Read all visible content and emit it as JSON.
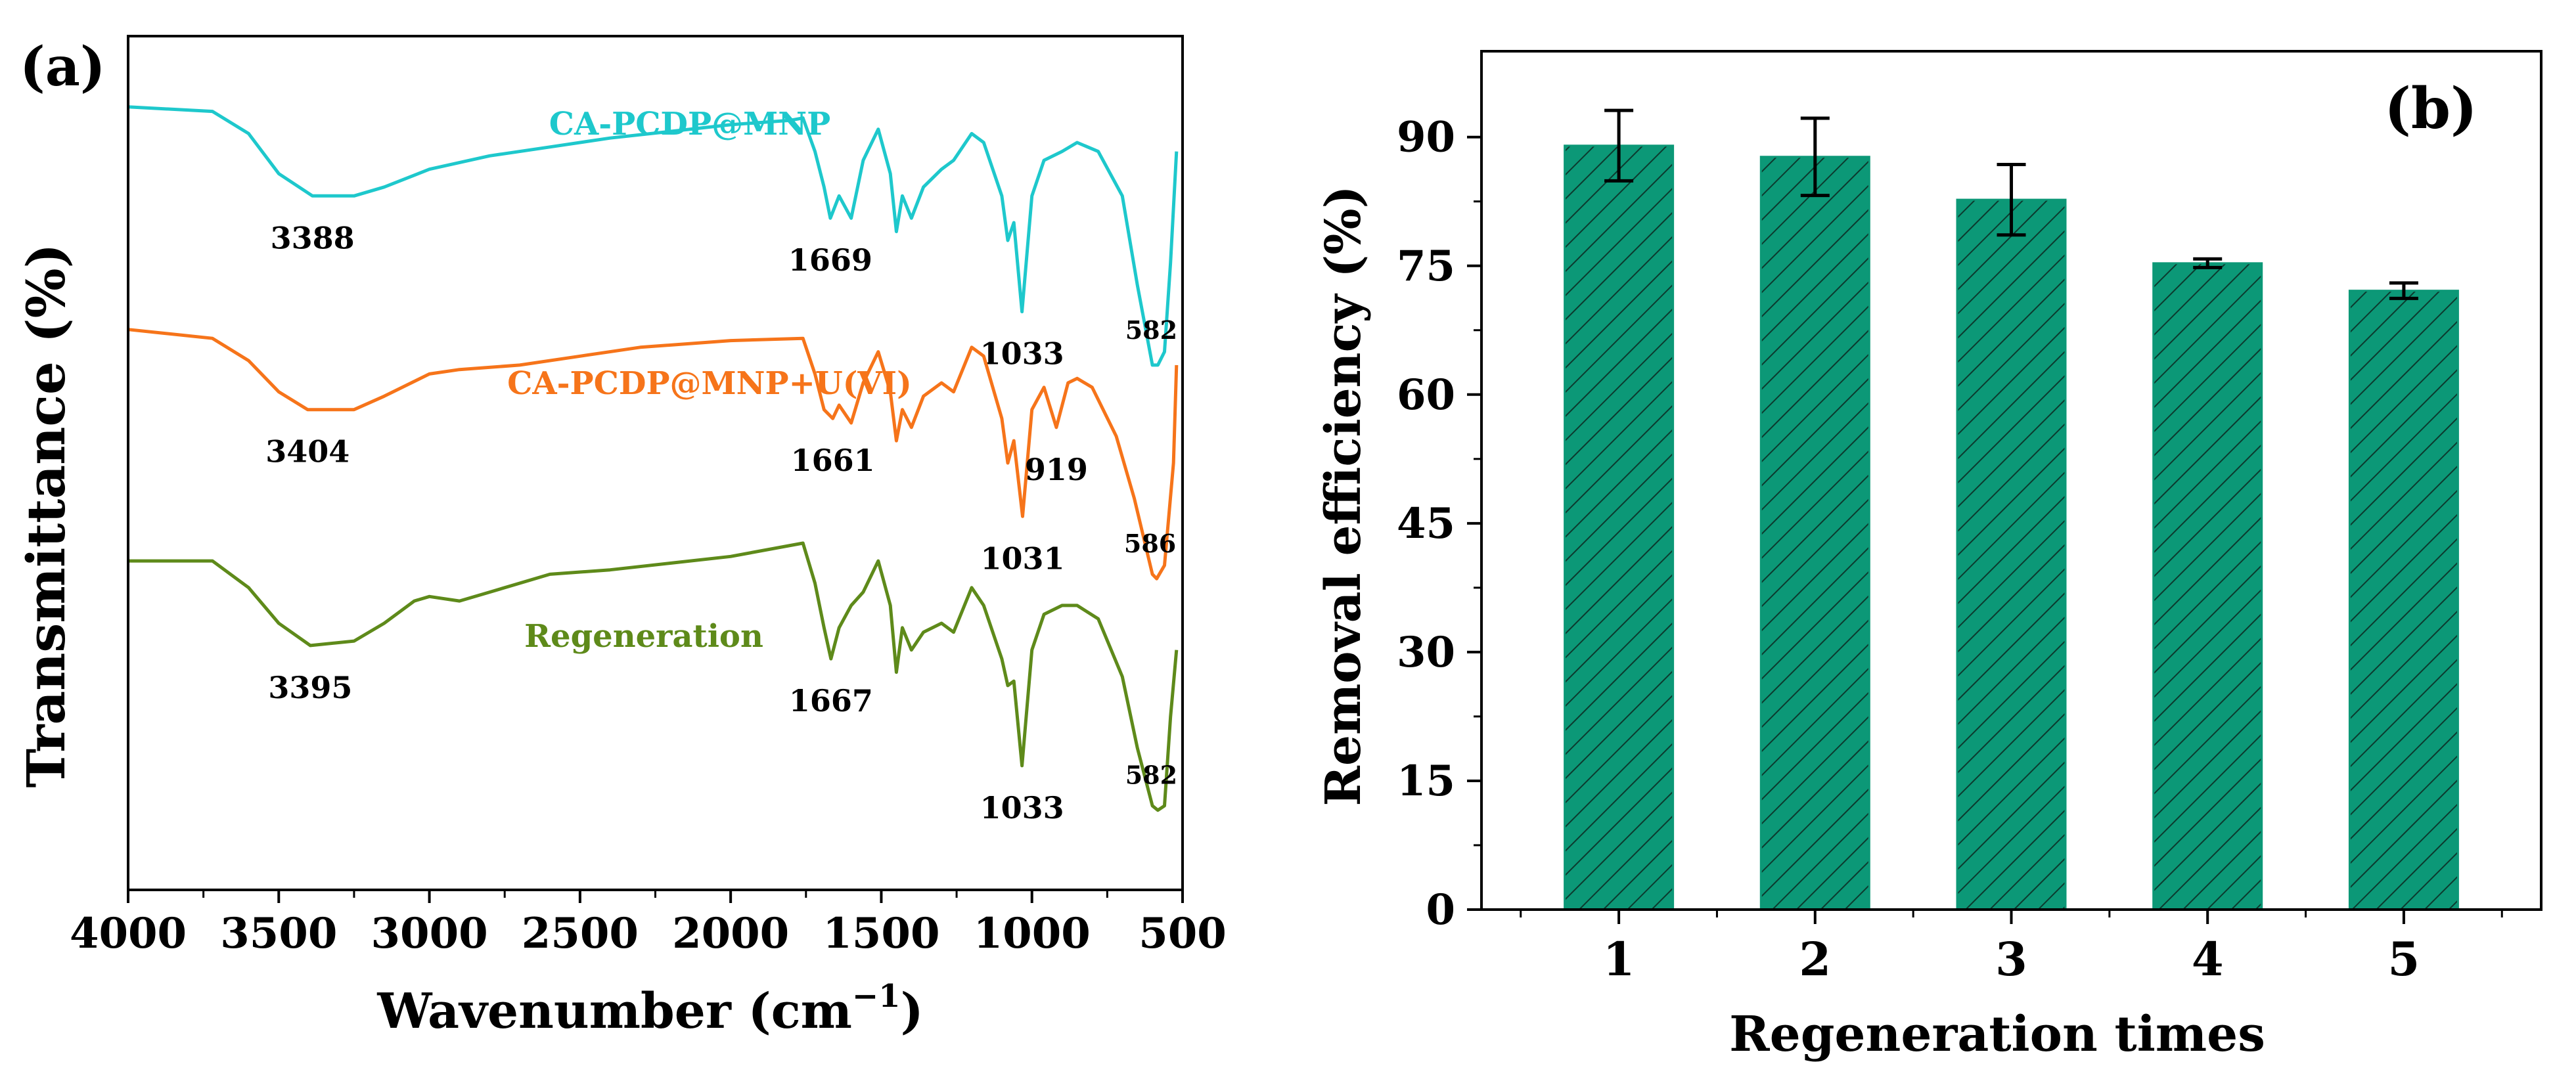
{
  "chart_data": [
    {
      "type": "line",
      "panel_label": "(a)",
      "xlabel": "Wavenumber (cm",
      "xlabel_sup": "−1",
      "xlabel_close": ")",
      "ylabel": "Transmittance (%)",
      "xlim": [
        4000,
        500
      ],
      "x_ticks": [
        "4000",
        "3500",
        "3000",
        "2500",
        "2000",
        "1500",
        "1000",
        "500"
      ],
      "x_tick_values": [
        4000,
        3500,
        3000,
        2500,
        2000,
        1500,
        1000,
        500
      ],
      "series": [
        {
          "name": "CA-PCDP@MNP",
          "color": "#1ec8cc",
          "offset": 0.9,
          "points": [
            [
              4000,
              0
            ],
            [
              3720,
              -0.01
            ],
            [
              3600,
              -0.06
            ],
            [
              3500,
              -0.15
            ],
            [
              3388,
              -0.2
            ],
            [
              3250,
              -0.2
            ],
            [
              3150,
              -0.18
            ],
            [
              3000,
              -0.14
            ],
            [
              2800,
              -0.11
            ],
            [
              2600,
              -0.09
            ],
            [
              2400,
              -0.07
            ],
            [
              2200,
              -0.055
            ],
            [
              2000,
              -0.04
            ],
            [
              1800,
              -0.03
            ],
            [
              1760,
              -0.025
            ],
            [
              1720,
              -0.1
            ],
            [
              1690,
              -0.18
            ],
            [
              1669,
              -0.25
            ],
            [
              1640,
              -0.2
            ],
            [
              1600,
              -0.25
            ],
            [
              1560,
              -0.12
            ],
            [
              1510,
              -0.05
            ],
            [
              1470,
              -0.15
            ],
            [
              1450,
              -0.28
            ],
            [
              1430,
              -0.2
            ],
            [
              1400,
              -0.25
            ],
            [
              1360,
              -0.18
            ],
            [
              1300,
              -0.14
            ],
            [
              1260,
              -0.12
            ],
            [
              1200,
              -0.06
            ],
            [
              1160,
              -0.08
            ],
            [
              1100,
              -0.2
            ],
            [
              1080,
              -0.3
            ],
            [
              1060,
              -0.26
            ],
            [
              1033,
              -0.46
            ],
            [
              1000,
              -0.2
            ],
            [
              960,
              -0.12
            ],
            [
              900,
              -0.1
            ],
            [
              850,
              -0.08
            ],
            [
              780,
              -0.1
            ],
            [
              700,
              -0.2
            ],
            [
              650,
              -0.4
            ],
            [
              600,
              -0.58
            ],
            [
              582,
              -0.58
            ],
            [
              560,
              -0.55
            ],
            [
              540,
              -0.35
            ],
            [
              520,
              -0.1
            ]
          ],
          "peaks": [
            {
              "label": "3388",
              "x": 3388,
              "y": -0.2
            },
            {
              "label": "1669",
              "x": 1669,
              "y": -0.25
            },
            {
              "label": "1033",
              "x": 1033,
              "y": -0.46
            },
            {
              "label": "582",
              "x": 582,
              "y": -0.58
            }
          ]
        },
        {
          "name": "CA-PCDP@MNP+U(VI)",
          "color": "#f6741a",
          "offset": 0.4,
          "points": [
            [
              4000,
              0
            ],
            [
              3720,
              -0.02
            ],
            [
              3600,
              -0.07
            ],
            [
              3500,
              -0.14
            ],
            [
              3404,
              -0.18
            ],
            [
              3250,
              -0.18
            ],
            [
              3150,
              -0.15
            ],
            [
              3000,
              -0.1
            ],
            [
              2900,
              -0.09
            ],
            [
              2700,
              -0.08
            ],
            [
              2500,
              -0.06
            ],
            [
              2300,
              -0.04
            ],
            [
              2000,
              -0.025
            ],
            [
              1760,
              -0.02
            ],
            [
              1720,
              -0.1
            ],
            [
              1690,
              -0.18
            ],
            [
              1661,
              -0.2
            ],
            [
              1640,
              -0.17
            ],
            [
              1600,
              -0.21
            ],
            [
              1560,
              -0.12
            ],
            [
              1510,
              -0.05
            ],
            [
              1470,
              -0.14
            ],
            [
              1450,
              -0.25
            ],
            [
              1430,
              -0.18
            ],
            [
              1400,
              -0.22
            ],
            [
              1360,
              -0.15
            ],
            [
              1300,
              -0.12
            ],
            [
              1260,
              -0.14
            ],
            [
              1200,
              -0.04
            ],
            [
              1160,
              -0.06
            ],
            [
              1100,
              -0.2
            ],
            [
              1080,
              -0.3
            ],
            [
              1060,
              -0.25
            ],
            [
              1031,
              -0.42
            ],
            [
              1000,
              -0.18
            ],
            [
              960,
              -0.13
            ],
            [
              919,
              -0.22
            ],
            [
              880,
              -0.12
            ],
            [
              850,
              -0.11
            ],
            [
              800,
              -0.13
            ],
            [
              720,
              -0.24
            ],
            [
              660,
              -0.38
            ],
            [
              600,
              -0.55
            ],
            [
              586,
              -0.56
            ],
            [
              560,
              -0.53
            ],
            [
              530,
              -0.3
            ],
            [
              520,
              -0.08
            ]
          ],
          "peaks": [
            {
              "label": "3404",
              "x": 3404,
              "y": -0.18
            },
            {
              "label": "1661",
              "x": 1661,
              "y": -0.2
            },
            {
              "label": "919",
              "x": 919,
              "y": -0.22
            },
            {
              "label": "1031",
              "x": 1031,
              "y": -0.42
            },
            {
              "label": "586",
              "x": 586,
              "y": -0.56
            }
          ]
        },
        {
          "name": "Regeneration",
          "color": "#5e8a1a",
          "offset": -0.12,
          "points": [
            [
              4000,
              0
            ],
            [
              3720,
              0
            ],
            [
              3600,
              -0.06
            ],
            [
              3500,
              -0.14
            ],
            [
              3395,
              -0.19
            ],
            [
              3250,
              -0.18
            ],
            [
              3150,
              -0.14
            ],
            [
              3050,
              -0.09
            ],
            [
              3000,
              -0.08
            ],
            [
              2900,
              -0.09
            ],
            [
              2800,
              -0.07
            ],
            [
              2600,
              -0.03
            ],
            [
              2400,
              -0.02
            ],
            [
              2200,
              -0.005
            ],
            [
              2000,
              0.01
            ],
            [
              1760,
              0.04
            ],
            [
              1720,
              -0.05
            ],
            [
              1690,
              -0.15
            ],
            [
              1667,
              -0.22
            ],
            [
              1640,
              -0.15
            ],
            [
              1600,
              -0.1
            ],
            [
              1560,
              -0.07
            ],
            [
              1510,
              0
            ],
            [
              1470,
              -0.1
            ],
            [
              1450,
              -0.25
            ],
            [
              1430,
              -0.15
            ],
            [
              1400,
              -0.2
            ],
            [
              1360,
              -0.16
            ],
            [
              1300,
              -0.14
            ],
            [
              1260,
              -0.16
            ],
            [
              1200,
              -0.06
            ],
            [
              1160,
              -0.1
            ],
            [
              1100,
              -0.22
            ],
            [
              1080,
              -0.28
            ],
            [
              1060,
              -0.27
            ],
            [
              1033,
              -0.46
            ],
            [
              1000,
              -0.2
            ],
            [
              960,
              -0.12
            ],
            [
              900,
              -0.1
            ],
            [
              850,
              -0.1
            ],
            [
              780,
              -0.13
            ],
            [
              700,
              -0.26
            ],
            [
              650,
              -0.42
            ],
            [
              600,
              -0.55
            ],
            [
              582,
              -0.56
            ],
            [
              560,
              -0.55
            ],
            [
              540,
              -0.35
            ],
            [
              520,
              -0.2
            ]
          ],
          "peaks": [
            {
              "label": "3395",
              "x": 3395,
              "y": -0.19
            },
            {
              "label": "1667",
              "x": 1667,
              "y": -0.22
            },
            {
              "label": "1033",
              "x": 1033,
              "y": -0.46
            },
            {
              "label": "582",
              "x": 582,
              "y": -0.56
            }
          ]
        }
      ]
    },
    {
      "type": "bar",
      "panel_label": "(b)",
      "xlabel": "Regeneration times",
      "ylabel": "Removal  efficiency (%)",
      "ylim": [
        0,
        100
      ],
      "y_ticks": [
        0,
        15,
        30,
        45,
        60,
        75,
        90
      ],
      "categories": [
        "1",
        "2",
        "3",
        "4",
        "5"
      ],
      "values": [
        89,
        87.7,
        82.7,
        75.3,
        72.1
      ],
      "errors": [
        4.1,
        4.5,
        4.1,
        0.5,
        0.9
      ],
      "bar_color": "#0c9877",
      "hatch_color": "#0c3a2e",
      "xlim": [
        0.3,
        5.7
      ]
    }
  ]
}
